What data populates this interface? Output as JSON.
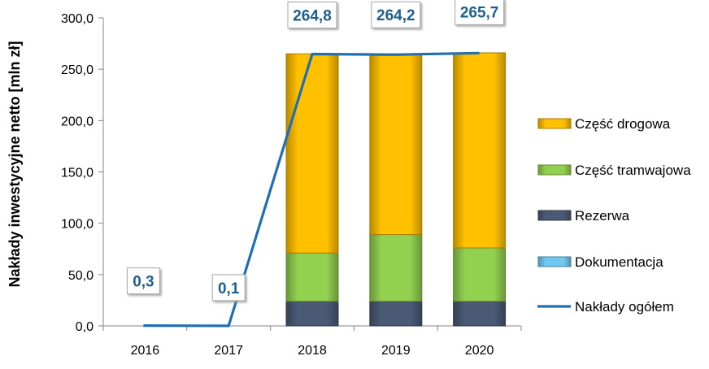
{
  "chart_data": {
    "type": "bar",
    "categories": [
      "2016",
      "2017",
      "2018",
      "2019",
      "2020"
    ],
    "series": [
      {
        "name": "Rezerwa",
        "values": [
          0,
          0,
          24,
          24,
          24
        ],
        "color": "#4A5A75"
      },
      {
        "name": "Część tramwajowa",
        "values": [
          0,
          0,
          47,
          65,
          52
        ],
        "color": "#92D050"
      },
      {
        "name": "Część drogowa",
        "values": [
          0,
          0,
          194,
          175,
          190
        ],
        "color": "#FFC000"
      },
      {
        "name": "Dokumentacja",
        "values": [
          0.3,
          0.1,
          0,
          0,
          0
        ],
        "color": "#6FC8F0"
      },
      {
        "name": "Nakłady ogółem",
        "type": "line",
        "values": [
          0.3,
          0.1,
          264.8,
          264.2,
          265.7
        ],
        "color": "#1F6FB5"
      }
    ],
    "data_labels": [
      "0,3",
      "0,1",
      "264,8",
      "264,2",
      "265,7"
    ],
    "legend_order": [
      "Część drogowa",
      "Część tramwajowa",
      "Rezerwa",
      "Dokumentacja",
      "Nakłady ogółem"
    ],
    "yticks": [
      "0,0",
      "50,0",
      "100,0",
      "150,0",
      "200,0",
      "250,0",
      "300,0"
    ],
    "ylabel": "Nakłady inwestycyjne netto [mln zł]",
    "xlabel": "",
    "ylim": [
      0,
      300
    ],
    "legend_position": "right",
    "grid": false
  }
}
